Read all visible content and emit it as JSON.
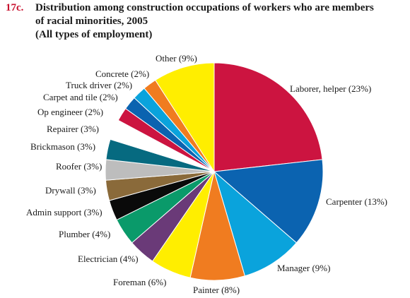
{
  "figure": {
    "number": "17c.",
    "title_line_1": "Distribution among construction occupations of workers who are members",
    "title_line_2": "of racial minorities, 2005",
    "subtitle": "(All types of employment)"
  },
  "chart_data": {
    "type": "pie",
    "title": "Distribution among construction occupations of workers who are members of racial minorities, 2005",
    "subtitle": "(All types of employment)",
    "slices": [
      {
        "label": "Laborer, helper (23%)",
        "name": "Laborer, helper",
        "value": 23,
        "color": "#cc1440"
      },
      {
        "label": "Carpenter (13%)",
        "name": "Carpenter",
        "value": 13,
        "color": "#0b63b0"
      },
      {
        "label": "Manager (9%)",
        "name": "Manager",
        "value": 9,
        "color": "#0aa3dc"
      },
      {
        "label": "Painter (8%)",
        "name": "Painter",
        "value": 8,
        "color": "#f07c20"
      },
      {
        "label": "Foreman (6%)",
        "name": "Foreman",
        "value": 6,
        "color": "#ffee00"
      },
      {
        "label": "Electrician (4%)",
        "name": "Electrician",
        "value": 4,
        "color": "#6a3a78"
      },
      {
        "label": "Plumber (4%)",
        "name": "Plumber",
        "value": 4,
        "color": "#0a9a6a"
      },
      {
        "label": "Admin support (3%)",
        "name": "Admin support",
        "value": 3,
        "color": "#0a0a0a"
      },
      {
        "label": "Drywall (3%)",
        "name": "Drywall",
        "value": 3,
        "color": "#8a6a3a"
      },
      {
        "label": "Roofer (3%)",
        "name": "Roofer",
        "value": 3,
        "color": "#bdbdbd"
      },
      {
        "label": "Brickmason (3%)",
        "name": "Brickmason",
        "value": 3,
        "color": "#066a80"
      },
      {
        "label": "Repairer (3%)",
        "name": "Repairer",
        "value": 3,
        "color": "#ffffff"
      },
      {
        "label": "Op engineer (2%)",
        "name": "Op engineer",
        "value": 2,
        "color": "#cc1440"
      },
      {
        "label": "Carpet and tile (2%)",
        "name": "Carpet and tile",
        "value": 2,
        "color": "#0b63b0"
      },
      {
        "label": "Truck driver (2%)",
        "name": "Truck driver",
        "value": 2,
        "color": "#0aa3dc"
      },
      {
        "label": "Concrete (2%)",
        "name": "Concrete",
        "value": 2,
        "color": "#f07c20"
      },
      {
        "label": "Other (9%)",
        "name": "Other",
        "value": 9,
        "color": "#ffee00"
      }
    ]
  }
}
